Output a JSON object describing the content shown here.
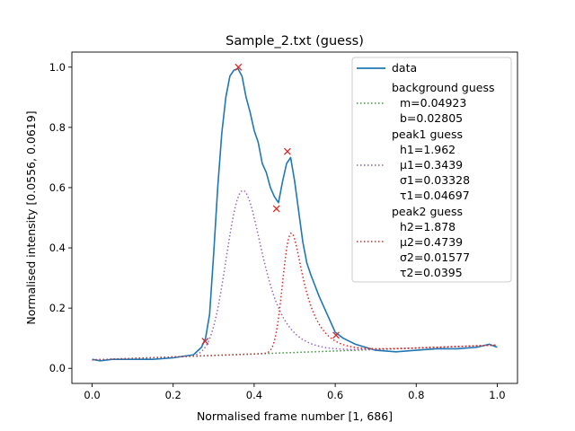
{
  "chart_data": {
    "type": "line",
    "title": "Sample_2.txt (guess)",
    "xlabel": "Normalised frame number [1, 686]",
    "ylabel": "Normalised intensity [0.0556, 0.0619]",
    "xlim": [
      -0.05,
      1.05
    ],
    "ylim": [
      -0.05,
      1.05
    ],
    "xticks": [
      0.0,
      0.2,
      0.4,
      0.6,
      0.8,
      1.0
    ],
    "xtick_labels": [
      "0.0",
      "0.2",
      "0.4",
      "0.6",
      "0.8",
      "1.0"
    ],
    "yticks": [
      0.0,
      0.2,
      0.4,
      0.6,
      0.8,
      1.0
    ],
    "ytick_labels": [
      "0.0",
      "0.2",
      "0.4",
      "0.6",
      "0.8",
      "1.0"
    ],
    "grid": false,
    "legend_position": "upper-right",
    "colors": {
      "data": "#1f77b4",
      "background": "#2ca02c",
      "peak1": "#9467bd",
      "peak2": "#d62728",
      "markers": "#d62728"
    },
    "series": [
      {
        "name": "data",
        "style": "solid",
        "x": [
          0.0,
          0.02,
          0.05,
          0.1,
          0.15,
          0.2,
          0.25,
          0.27,
          0.28,
          0.29,
          0.3,
          0.31,
          0.32,
          0.33,
          0.34,
          0.35,
          0.36,
          0.37,
          0.38,
          0.39,
          0.4,
          0.41,
          0.42,
          0.43,
          0.44,
          0.45,
          0.46,
          0.47,
          0.48,
          0.49,
          0.5,
          0.51,
          0.52,
          0.53,
          0.54,
          0.56,
          0.58,
          0.6,
          0.62,
          0.65,
          0.7,
          0.75,
          0.8,
          0.85,
          0.9,
          0.95,
          0.98,
          1.0
        ],
        "y": [
          0.03,
          0.025,
          0.03,
          0.03,
          0.03,
          0.035,
          0.045,
          0.07,
          0.1,
          0.18,
          0.38,
          0.6,
          0.78,
          0.9,
          0.97,
          0.99,
          0.995,
          0.97,
          0.9,
          0.85,
          0.79,
          0.75,
          0.68,
          0.65,
          0.6,
          0.57,
          0.55,
          0.62,
          0.68,
          0.7,
          0.62,
          0.52,
          0.42,
          0.35,
          0.31,
          0.24,
          0.18,
          0.12,
          0.1,
          0.08,
          0.06,
          0.055,
          0.06,
          0.065,
          0.065,
          0.07,
          0.08,
          0.07
        ]
      },
      {
        "name": "background guess",
        "style": "dotted",
        "params": [
          "m=0.04923",
          "b=0.02805"
        ],
        "m": 0.04923,
        "b": 0.02805
      },
      {
        "name": "peak1 guess",
        "style": "dotted",
        "params": [
          "h1=1.962",
          "μ1=0.3439",
          "σ1=0.03328",
          "τ1=0.04697"
        ],
        "h": 1.962,
        "mu": 0.3439,
        "sigma": 0.03328,
        "tau": 0.04697
      },
      {
        "name": "peak2 guess",
        "style": "dotted",
        "params": [
          "h2=1.878",
          "μ2=0.4739",
          "σ2=0.01577",
          "τ2=0.0395"
        ],
        "h": 1.878,
        "mu": 0.4739,
        "sigma": 0.01577,
        "tau": 0.0395
      }
    ],
    "markers": {
      "symbol": "x",
      "points": [
        {
          "x": 0.279,
          "y": 0.09
        },
        {
          "x": 0.361,
          "y": 1.0
        },
        {
          "x": 0.455,
          "y": 0.53
        },
        {
          "x": 0.482,
          "y": 0.72
        },
        {
          "x": 0.602,
          "y": 0.11
        }
      ]
    }
  }
}
